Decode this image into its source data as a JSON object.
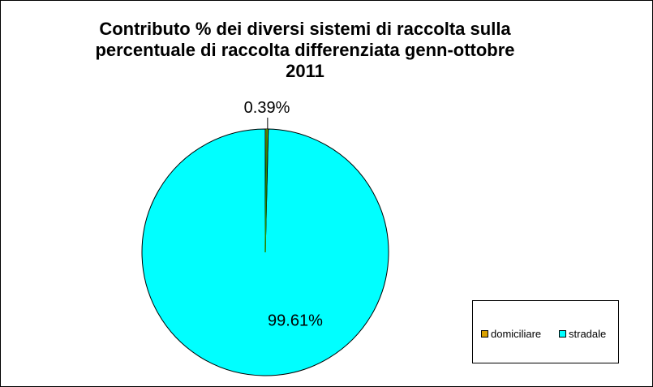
{
  "chart_data": {
    "type": "pie",
    "title": "Contributo % dei diversi sistemi di raccolta sulla percentuale di raccolta differenziata  genn-ottobre 2011",
    "title_lines": [
      "Contributo % dei diversi sistemi di raccolta sulla",
      "percentuale di raccolta differenziata  genn-ottobre",
      "2011"
    ],
    "categories": [
      "domiciliare",
      "stradale"
    ],
    "values": [
      0.39,
      99.61
    ],
    "labels": [
      "0.39%",
      "99.61%"
    ],
    "colors": [
      "#D9A000",
      "#00FFFF"
    ],
    "legend_placement": "bottom-right"
  }
}
